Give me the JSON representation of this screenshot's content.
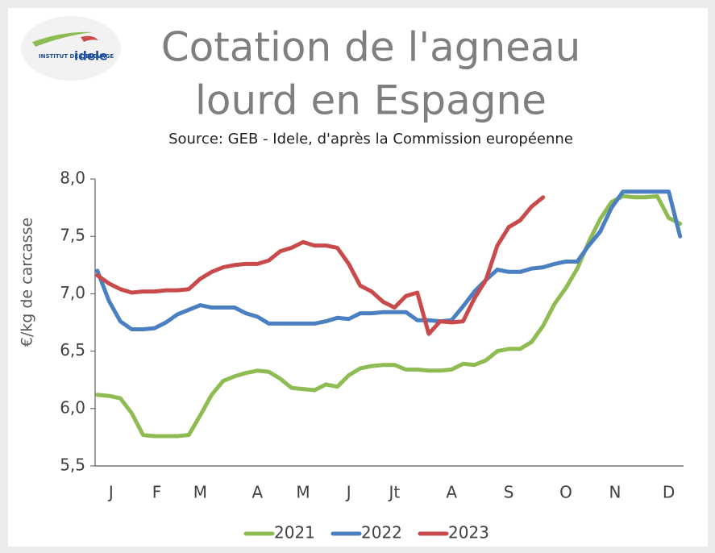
{
  "logo": {
    "text": "INSTITUT DE L'ELEVAGE",
    "brand": "idele"
  },
  "chart_data": {
    "type": "line",
    "title": [
      "Cotation de l'agneau",
      "lourd en Espagne"
    ],
    "subtitle": "Source: GEB - Idele, d'après la Commission européenne",
    "y_label": "€/kg de carcasse",
    "x": [
      1,
      2,
      3,
      4,
      5,
      6,
      7,
      8,
      9,
      10,
      11,
      12,
      13,
      14,
      15,
      16,
      17,
      18,
      19,
      20,
      21,
      22,
      23,
      24,
      25,
      26,
      27,
      28,
      29,
      30,
      31,
      32,
      33,
      34,
      35,
      36,
      37,
      38,
      39,
      40,
      41,
      42,
      43,
      44,
      45,
      46,
      47,
      48,
      49,
      50,
      51,
      52
    ],
    "xlim": [
      0.8,
      52.3
    ],
    "xticks": [
      {
        "value": 2.2,
        "label": "J"
      },
      {
        "value": 6.2,
        "label": "F"
      },
      {
        "value": 10,
        "label": "M"
      },
      {
        "value": 15,
        "label": "A"
      },
      {
        "value": 19,
        "label": "M"
      },
      {
        "value": 23,
        "label": "J"
      },
      {
        "value": 27,
        "label": "Jt"
      },
      {
        "value": 32,
        "label": "A"
      },
      {
        "value": 37,
        "label": "S"
      },
      {
        "value": 42,
        "label": "O"
      },
      {
        "value": 46.3,
        "label": "N"
      },
      {
        "value": 51,
        "label": "D"
      }
    ],
    "ylim": [
      5.5,
      8.0
    ],
    "yticks": [
      {
        "value": 5.5,
        "label": "5,5"
      },
      {
        "value": 6.0,
        "label": "6,0"
      },
      {
        "value": 6.5,
        "label": "6,5"
      },
      {
        "value": 7.0,
        "label": "7,0"
      },
      {
        "value": 7.5,
        "label": "7,5"
      },
      {
        "value": 8.0,
        "label": "8,0"
      }
    ],
    "legend": "bottom",
    "series": [
      {
        "name": "2021",
        "color": "#8fbc52",
        "values": [
          6.12,
          6.11,
          6.09,
          5.96,
          5.77,
          5.76,
          5.76,
          5.76,
          5.77,
          5.94,
          6.12,
          6.24,
          6.28,
          6.31,
          6.33,
          6.32,
          6.26,
          6.18,
          6.17,
          6.16,
          6.21,
          6.19,
          6.29,
          6.35,
          6.37,
          6.38,
          6.38,
          6.34,
          6.34,
          6.33,
          6.33,
          6.34,
          6.39,
          6.38,
          6.42,
          6.5,
          6.52,
          6.52,
          6.58,
          6.72,
          6.91,
          7.05,
          7.22,
          7.45,
          7.65,
          7.8,
          7.85,
          7.84,
          7.84,
          7.85,
          7.66,
          7.61
        ]
      },
      {
        "name": "2022",
        "color": "#4a7fc1",
        "values": [
          7.2,
          6.94,
          6.76,
          6.69,
          6.69,
          6.7,
          6.75,
          6.82,
          6.86,
          6.9,
          6.88,
          6.88,
          6.88,
          6.83,
          6.8,
          6.74,
          6.74,
          6.74,
          6.74,
          6.74,
          6.76,
          6.79,
          6.78,
          6.83,
          6.83,
          6.84,
          6.84,
          6.84,
          6.77,
          6.77,
          6.76,
          6.77,
          6.89,
          7.02,
          7.12,
          7.21,
          7.19,
          7.19,
          7.22,
          7.23,
          7.26,
          7.28,
          7.28,
          7.42,
          7.54,
          7.75,
          7.89,
          7.89,
          7.89,
          7.89,
          7.89,
          7.5
        ]
      },
      {
        "name": "2023",
        "color": "#c94a4a",
        "values": [
          7.16,
          7.09,
          7.04,
          7.01,
          7.02,
          7.02,
          7.03,
          7.03,
          7.04,
          7.13,
          7.19,
          7.23,
          7.25,
          7.26,
          7.26,
          7.29,
          7.37,
          7.4,
          7.45,
          7.42,
          7.42,
          7.4,
          7.26,
          7.07,
          7.02,
          6.93,
          6.88,
          6.98,
          7.01,
          6.65,
          6.76,
          6.75,
          6.76,
          6.96,
          7.12,
          7.42,
          7.58,
          7.64,
          7.76,
          7.84,
          null,
          null,
          null,
          null,
          null,
          null,
          null,
          null,
          null,
          null,
          null,
          null
        ]
      }
    ]
  }
}
